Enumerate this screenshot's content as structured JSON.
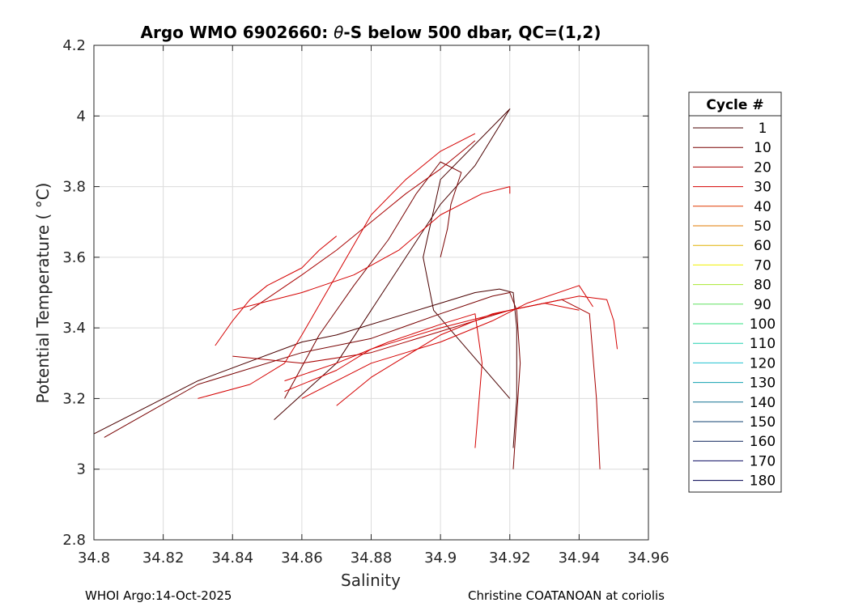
{
  "title": {
    "prefix": "Argo WMO 6902660: ",
    "theta": "θ",
    "suffix": "-S below 500 dbar,  QC=(1,2)"
  },
  "footer": {
    "left": "WHOI Argo:14-Oct-2025",
    "right": "Christine COATANOAN at coriolis"
  },
  "chart_data": {
    "type": "line",
    "title": "Argo WMO 6902660: θ-S below 500 dbar,  QC=(1,2)",
    "xlabel": "Salinity",
    "ylabel": "Potential Temperature ( °C)",
    "xlim": [
      34.8,
      34.96
    ],
    "ylim": [
      2.8,
      4.2
    ],
    "xticks": [
      "34.8",
      "34.82",
      "34.84",
      "34.86",
      "34.88",
      "34.9",
      "34.92",
      "34.94",
      "34.96"
    ],
    "xtick_values": [
      34.8,
      34.82,
      34.84,
      34.86,
      34.88,
      34.9,
      34.92,
      34.94,
      34.96
    ],
    "yticks": [
      "2.8",
      "3",
      "3.2",
      "3.4",
      "3.6",
      "3.8",
      "4",
      "4.2"
    ],
    "ytick_values": [
      2.8,
      3.0,
      3.2,
      3.4,
      3.6,
      3.8,
      4.0,
      4.2
    ],
    "grid": true,
    "legend": {
      "title": "Cycle #",
      "placement": "outside-right",
      "entries": [
        {
          "label": "1",
          "color": "#4a0000"
        },
        {
          "label": "10",
          "color": "#780000"
        },
        {
          "label": "20",
          "color": "#a80000"
        },
        {
          "label": "30",
          "color": "#d40000"
        },
        {
          "label": "40",
          "color": "#e03a00"
        },
        {
          "label": "50",
          "color": "#e07a00"
        },
        {
          "label": "60",
          "color": "#e0b000"
        },
        {
          "label": "70",
          "color": "#f0f000"
        },
        {
          "label": "80",
          "color": "#a8e830"
        },
        {
          "label": "90",
          "color": "#60e060"
        },
        {
          "label": "100",
          "color": "#30e080"
        },
        {
          "label": "110",
          "color": "#20d0b0"
        },
        {
          "label": "120",
          "color": "#20c0d0"
        },
        {
          "label": "130",
          "color": "#10a0b0"
        },
        {
          "label": "140",
          "color": "#107090"
        },
        {
          "label": "150",
          "color": "#104070"
        },
        {
          "label": "160",
          "color": "#0a2058"
        },
        {
          "label": "170",
          "color": "#0a0a60"
        },
        {
          "label": "180",
          "color": "#000050"
        }
      ]
    },
    "series": [
      {
        "color": "#4a0000",
        "x": [
          34.8,
          34.83,
          34.86,
          34.87,
          34.9,
          34.91,
          34.917,
          34.921,
          34.922,
          34.922,
          34.921
        ],
        "y": [
          3.1,
          3.25,
          3.36,
          3.38,
          3.47,
          3.5,
          3.51,
          3.5,
          3.4,
          3.2,
          3.06
        ]
      },
      {
        "color": "#4a0000",
        "x": [
          34.852,
          34.87,
          34.88,
          34.89,
          34.9,
          34.91,
          34.92,
          34.9,
          34.895,
          34.898,
          34.92
        ],
        "y": [
          3.14,
          3.3,
          3.45,
          3.6,
          3.75,
          3.86,
          4.02,
          3.82,
          3.6,
          3.45,
          3.2
        ]
      },
      {
        "color": "#780000",
        "x": [
          34.803,
          34.83,
          34.86,
          34.88,
          34.9,
          34.915,
          34.92,
          34.922,
          34.923,
          34.921
        ],
        "y": [
          3.09,
          3.24,
          3.33,
          3.37,
          3.44,
          3.49,
          3.5,
          3.45,
          3.3,
          3.0
        ]
      },
      {
        "color": "#780000",
        "x": [
          34.855,
          34.865,
          34.875,
          34.885,
          34.893,
          34.9,
          34.906,
          34.903,
          34.902,
          34.9
        ],
        "y": [
          3.2,
          3.38,
          3.52,
          3.65,
          3.78,
          3.87,
          3.84,
          3.75,
          3.68,
          3.6
        ]
      },
      {
        "color": "#a80000",
        "x": [
          34.84,
          34.86,
          34.88,
          34.9,
          34.92,
          34.935,
          34.943,
          34.945,
          34.946
        ],
        "y": [
          3.32,
          3.3,
          3.33,
          3.39,
          3.45,
          3.48,
          3.44,
          3.2,
          3.0
        ]
      },
      {
        "color": "#a80000",
        "x": [
          34.845,
          34.86,
          34.87,
          34.88,
          34.89,
          34.9,
          34.91
        ],
        "y": [
          3.45,
          3.55,
          3.62,
          3.7,
          3.78,
          3.85,
          3.93
        ]
      },
      {
        "color": "#d40000",
        "x": [
          34.83,
          34.845,
          34.855,
          34.86,
          34.87,
          34.88,
          34.89,
          34.9,
          34.91
        ],
        "y": [
          3.2,
          3.24,
          3.3,
          3.38,
          3.55,
          3.72,
          3.82,
          3.9,
          3.95
        ]
      },
      {
        "color": "#d40000",
        "x": [
          34.84,
          34.86,
          34.875,
          34.888,
          34.9,
          34.912,
          34.92,
          34.92
        ],
        "y": [
          3.45,
          3.5,
          3.55,
          3.62,
          3.72,
          3.78,
          3.8,
          3.78
        ]
      },
      {
        "color": "#d40000",
        "x": [
          34.855,
          34.87,
          34.88,
          34.9,
          34.92,
          34.94,
          34.948,
          34.95,
          34.951
        ],
        "y": [
          3.22,
          3.28,
          3.34,
          3.4,
          3.45,
          3.49,
          3.48,
          3.42,
          3.34
        ]
      },
      {
        "color": "#d40000",
        "x": [
          34.86,
          34.88,
          34.9,
          34.915,
          34.925,
          34.94,
          34.944
        ],
        "y": [
          3.2,
          3.3,
          3.36,
          3.42,
          3.47,
          3.52,
          3.46
        ]
      },
      {
        "color": "#d40000",
        "x": [
          34.855,
          34.87,
          34.885,
          34.9,
          34.91,
          34.912,
          34.91
        ],
        "y": [
          3.25,
          3.3,
          3.36,
          3.41,
          3.44,
          3.3,
          3.06
        ]
      },
      {
        "color": "#d40000",
        "x": [
          34.835,
          34.84,
          34.845,
          34.85,
          34.86,
          34.865,
          34.87
        ],
        "y": [
          3.35,
          3.42,
          3.48,
          3.52,
          3.57,
          3.62,
          3.66
        ]
      },
      {
        "color": "#d40000",
        "x": [
          34.87,
          34.88,
          34.89,
          34.9,
          34.915,
          34.93,
          34.94
        ],
        "y": [
          3.18,
          3.26,
          3.32,
          3.38,
          3.44,
          3.47,
          3.45
        ]
      }
    ]
  }
}
